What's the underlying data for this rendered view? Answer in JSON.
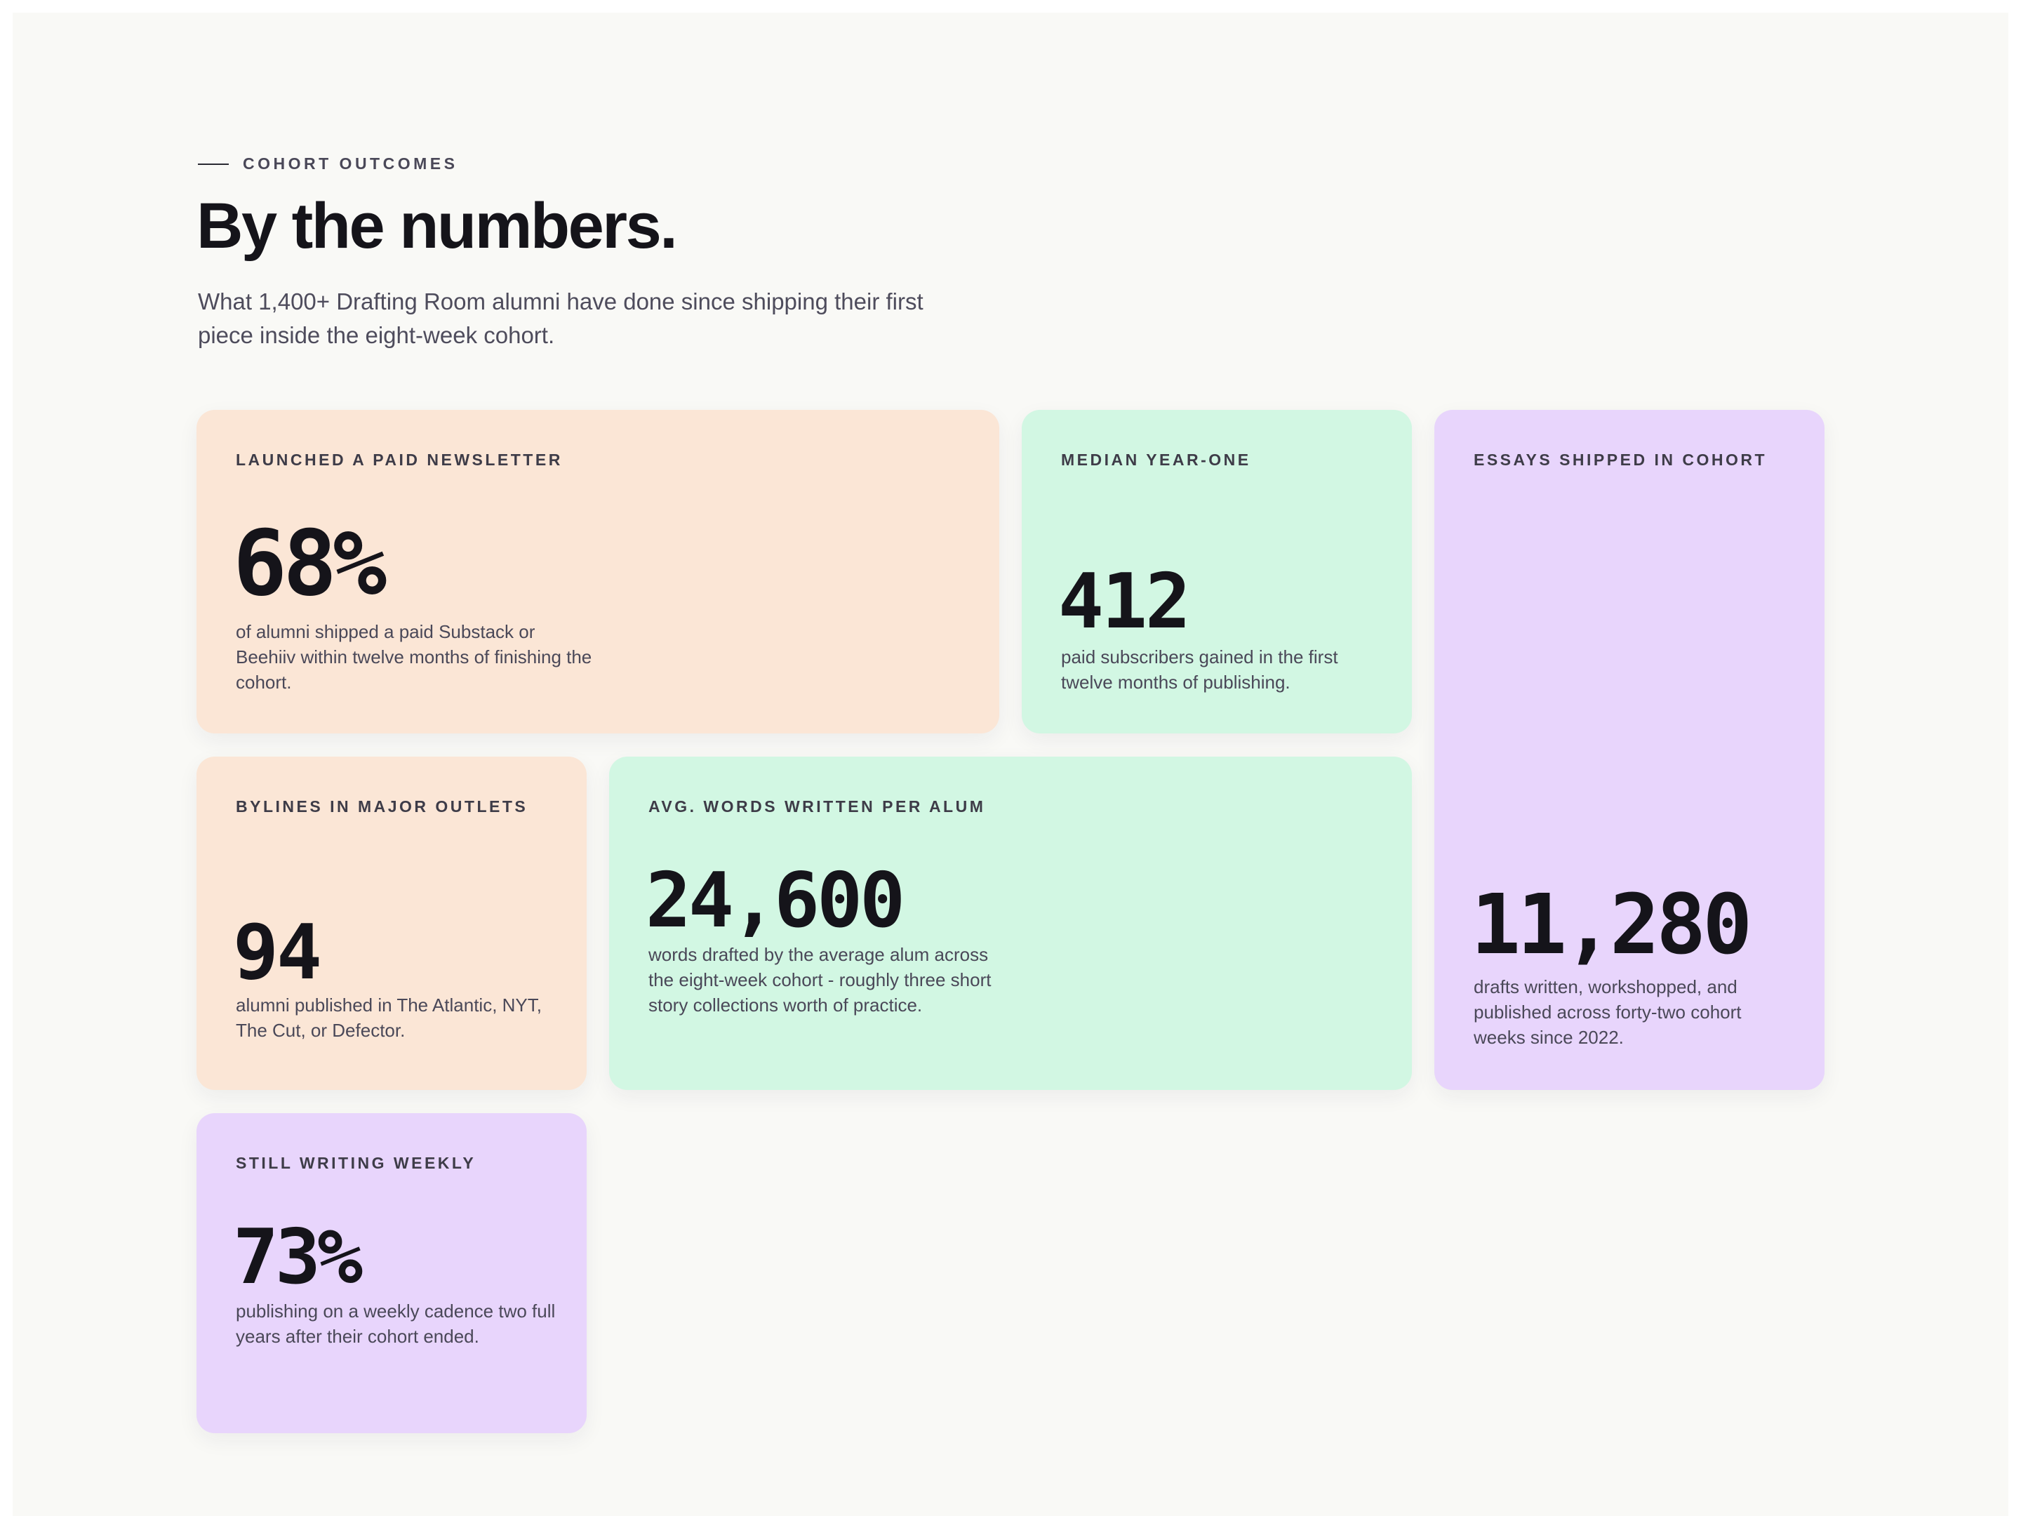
{
  "header": {
    "eyebrow": "COHORT OUTCOMES",
    "title": "By the numbers.",
    "subtitle": "What 1,400+ Drafting Room alumni have done since shipping their first piece inside the eight-week cohort."
  },
  "stats": {
    "paid_newsletter": {
      "label": "LAUNCHED A PAID NEWSLETTER",
      "value": "68%",
      "description": "of alumni shipped a paid Substack or Beehiiv within twelve months of finishing the cohort."
    },
    "median_year_one": {
      "label": "MEDIAN YEAR-ONE",
      "value": "412",
      "description": "paid subscribers gained in the first twelve months of publishing."
    },
    "essays_shipped": {
      "label": "ESSAYS SHIPPED IN COHORT",
      "value": "11,280",
      "description": "drafts written, workshopped, and published across forty-two cohort weeks since 2022."
    },
    "bylines": {
      "label": "BYLINES IN MAJOR OUTLETS",
      "value": "94",
      "description": "alumni published in The Atlantic, NYT, The Cut, or Defector."
    },
    "avg_words": {
      "label": "AVG. WORDS WRITTEN PER ALUM",
      "value": "24,600",
      "description": "words drafted by the average alum across the eight-week cohort - roughly three short story collections worth of practice."
    },
    "still_writing": {
      "label": "STILL WRITING WEEKLY",
      "value": "73%",
      "description": "publishing on a weekly cadence two full years after their cohort ended."
    }
  },
  "colors": {
    "peach": "#fbe6d6",
    "mint": "#d2f7e3",
    "lilac": "#e8d5fc",
    "ink": "#15141a",
    "background": "#f9f9f6"
  }
}
